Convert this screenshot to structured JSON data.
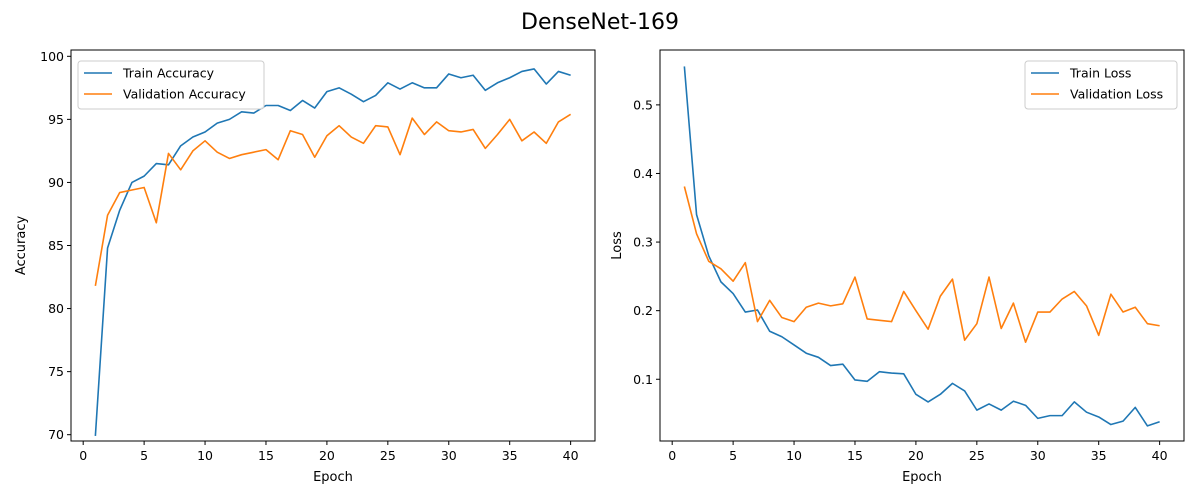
{
  "figure": {
    "suptitle": "DenseNet-169"
  },
  "colors": {
    "train": "#1f77b4",
    "validation": "#ff7f0e",
    "axis": "#000000",
    "legend_border": "#cccccc"
  },
  "chart_data": [
    {
      "type": "line",
      "title": "",
      "xlabel": "Epoch",
      "ylabel": "Accuracy",
      "xlim": [
        -1,
        42
      ],
      "ylim": [
        69.5,
        100.5
      ],
      "xticks": [
        0,
        5,
        10,
        15,
        20,
        25,
        30,
        35,
        40
      ],
      "yticks": [
        70,
        75,
        80,
        85,
        90,
        95,
        100
      ],
      "grid": false,
      "legend_position": "top-left",
      "x": [
        1,
        2,
        3,
        4,
        5,
        6,
        7,
        8,
        9,
        10,
        11,
        12,
        13,
        14,
        15,
        16,
        17,
        18,
        19,
        20,
        21,
        22,
        23,
        24,
        25,
        26,
        27,
        28,
        29,
        30,
        31,
        32,
        33,
        34,
        35,
        36,
        37,
        38,
        39,
        40
      ],
      "series": [
        {
          "name": "Train Accuracy",
          "values": [
            69.9,
            84.8,
            87.8,
            90.0,
            90.5,
            91.5,
            91.4,
            92.9,
            93.6,
            94.0,
            94.7,
            95.0,
            95.6,
            95.5,
            96.1,
            96.1,
            95.7,
            96.5,
            95.9,
            97.2,
            97.5,
            97.0,
            96.4,
            96.9,
            97.9,
            97.4,
            97.9,
            97.5,
            97.5,
            98.6,
            98.3,
            98.5,
            97.3,
            97.9,
            98.3,
            98.8,
            99.0,
            97.8,
            98.8,
            98.5
          ]
        },
        {
          "name": "Validation Accuracy",
          "values": [
            81.8,
            87.4,
            89.2,
            89.4,
            89.6,
            86.8,
            92.3,
            91.0,
            92.5,
            93.3,
            92.4,
            91.9,
            92.2,
            92.4,
            92.6,
            91.8,
            94.1,
            93.8,
            92.0,
            93.7,
            94.5,
            93.6,
            93.1,
            94.5,
            94.4,
            92.2,
            95.1,
            93.8,
            94.8,
            94.1,
            94.0,
            94.2,
            92.7,
            93.8,
            95.0,
            93.3,
            94.0,
            93.1,
            94.8,
            95.4
          ]
        }
      ]
    },
    {
      "type": "line",
      "title": "",
      "xlabel": "Epoch",
      "ylabel": "Loss",
      "xlim": [
        -1,
        42
      ],
      "ylim": [
        0.01,
        0.58
      ],
      "xticks": [
        0,
        5,
        10,
        15,
        20,
        25,
        30,
        35,
        40
      ],
      "yticks": [
        0.1,
        0.2,
        0.3,
        0.4,
        0.5
      ],
      "grid": false,
      "legend_position": "top-right",
      "x": [
        1,
        2,
        3,
        4,
        5,
        6,
        7,
        8,
        9,
        10,
        11,
        12,
        13,
        14,
        15,
        16,
        17,
        18,
        19,
        20,
        21,
        22,
        23,
        24,
        25,
        26,
        27,
        28,
        29,
        30,
        31,
        32,
        33,
        34,
        35,
        36,
        37,
        38,
        39,
        40
      ],
      "series": [
        {
          "name": "Train Loss",
          "values": [
            0.556,
            0.34,
            0.28,
            0.242,
            0.225,
            0.198,
            0.201,
            0.17,
            0.162,
            0.15,
            0.138,
            0.132,
            0.12,
            0.122,
            0.099,
            0.097,
            0.111,
            0.109,
            0.108,
            0.078,
            0.067,
            0.078,
            0.094,
            0.083,
            0.055,
            0.064,
            0.055,
            0.068,
            0.062,
            0.043,
            0.047,
            0.047,
            0.067,
            0.052,
            0.045,
            0.034,
            0.039,
            0.059,
            0.032,
            0.038
          ]
        },
        {
          "name": "Validation Loss",
          "values": [
            0.381,
            0.312,
            0.272,
            0.261,
            0.243,
            0.27,
            0.184,
            0.215,
            0.19,
            0.184,
            0.205,
            0.211,
            0.207,
            0.21,
            0.249,
            0.188,
            0.186,
            0.184,
            0.228,
            0.2,
            0.173,
            0.221,
            0.246,
            0.157,
            0.181,
            0.249,
            0.174,
            0.211,
            0.154,
            0.198,
            0.198,
            0.217,
            0.228,
            0.207,
            0.164,
            0.224,
            0.198,
            0.205,
            0.181,
            0.178
          ]
        }
      ]
    }
  ]
}
